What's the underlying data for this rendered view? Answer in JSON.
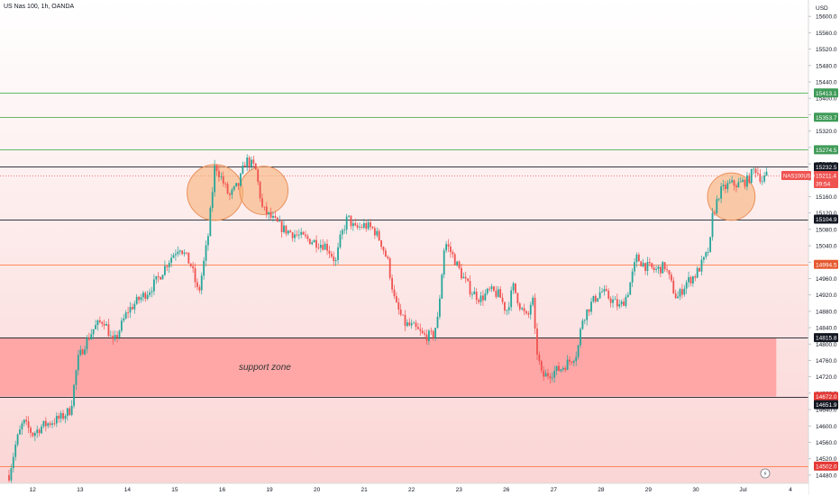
{
  "header": {
    "symbol_title": "US Nas 100, 1h, OANDA"
  },
  "axis": {
    "currency": "USD"
  },
  "annotation": {
    "support_zone_label": "support zone"
  },
  "colors": {
    "up": "#26a69a",
    "down": "#ef5350",
    "wick": "#444444",
    "green_line": "#4caf50",
    "orange_line": "#ff7a45",
    "black_line": "#131722",
    "zone_fill": "#ffa1a1",
    "bg_top": "#ffffff",
    "bg_bottom": "#fbd5d5",
    "circle_fill": "#f6b178",
    "circle_stroke": "#e9905a"
  },
  "chart_data": {
    "type": "candlestick",
    "title": "US Nas 100, 1h, OANDA",
    "ylim": [
      14460,
      15640
    ],
    "y_ticks": [
      15600,
      15560,
      15520,
      15480,
      15440,
      15400,
      15360,
      15320,
      15280,
      15240,
      15200,
      15160,
      15120,
      15080,
      15040,
      15000,
      14960,
      14920,
      14880,
      14840,
      14800,
      14760,
      14720,
      14680,
      14640,
      14600,
      14560,
      14520,
      14480
    ],
    "y_tick_labels": [
      "15600.0",
      "15560.0",
      "15520.0",
      "15480.0",
      "15440.0",
      "15400.0",
      "15360.0",
      "15320.0",
      "15280.0",
      "15240.0",
      "15200.0",
      "15160.0",
      "15120.0",
      "15080.0",
      "15040.0",
      "15000.0",
      "14960.0",
      "14920.0",
      "14880.0",
      "14840.0",
      "14800.0",
      "14760.0",
      "14720.0",
      "14680.0",
      "14640.0",
      "14600.0",
      "14560.0",
      "14520.0",
      "14480.0"
    ],
    "x_ticks": [
      {
        "label": "12",
        "pos": 0.5
      },
      {
        "label": "13",
        "pos": 1.5
      },
      {
        "label": "14",
        "pos": 2.5
      },
      {
        "label": "15",
        "pos": 3.5
      },
      {
        "label": "16",
        "pos": 4.5
      },
      {
        "label": "19",
        "pos": 5.5
      },
      {
        "label": "20",
        "pos": 6.5
      },
      {
        "label": "21",
        "pos": 7.5
      },
      {
        "label": "22",
        "pos": 8.5
      },
      {
        "label": "23",
        "pos": 9.5
      },
      {
        "label": "26",
        "pos": 10.5
      },
      {
        "label": "27",
        "pos": 11.5
      },
      {
        "label": "28",
        "pos": 12.5
      },
      {
        "label": "29",
        "pos": 13.5
      },
      {
        "label": "30",
        "pos": 14.5
      },
      {
        "label": "Jul",
        "pos": 15.5
      },
      {
        "label": "4",
        "pos": 16.5
      }
    ],
    "horizontal_levels": [
      {
        "price": 15413.1,
        "label": "15413.1",
        "color": "#4caf50",
        "badge": "#3f9b58"
      },
      {
        "price": 15353.7,
        "label": "15353.7",
        "color": "#4caf50",
        "badge": "#3f9b58"
      },
      {
        "price": 15274.5,
        "label": "15274.5",
        "color": "#4caf50",
        "badge": "#3f9b58"
      },
      {
        "price": 15232.5,
        "label": "15232.5",
        "color": "#131722",
        "badge": "#131722"
      },
      {
        "price": 15104.9,
        "label": "15104.9",
        "color": "#131722",
        "badge": "#131722"
      },
      {
        "price": 14994.5,
        "label": "14994.5",
        "color": "#ff7a45",
        "badge": "#e65a2f"
      },
      {
        "price": 14815.8,
        "label": "14815.8",
        "color": "#131722",
        "badge": "#131722"
      },
      {
        "price": 14672.0,
        "label": "14672.0",
        "color": "#131722",
        "badge": "#e53935"
      },
      {
        "price": 14502.0,
        "label": "14502.0",
        "color": "#ff7a45",
        "badge": "#e53935"
      }
    ],
    "extra_price_label": {
      "price": 14651.9,
      "label": "14651.9",
      "badge": "#131722"
    },
    "current_price": {
      "symbol": "NAS100USD",
      "price": 15211.4,
      "label": "15211.4",
      "countdown": "39:54",
      "badge": "#ef5350"
    },
    "support_zone": {
      "top": 14815.8,
      "bottom": 14672.0,
      "x_start": 0,
      "x_end": 16.2,
      "label": "support zone"
    },
    "circles": [
      {
        "x": 4.35,
        "price": 15170,
        "r_days": 0.67
      },
      {
        "x": 5.38,
        "price": 15175,
        "r_days": 0.58
      },
      {
        "x": 15.25,
        "price": 15160,
        "r_days": 0.57
      }
    ],
    "anchors": [
      [
        0.0,
        14480
      ],
      [
        0.15,
        14560
      ],
      [
        0.3,
        14610
      ],
      [
        0.5,
        14580
      ],
      [
        0.7,
        14600
      ],
      [
        0.9,
        14610
      ],
      [
        1.1,
        14620
      ],
      [
        1.3,
        14640
      ],
      [
        1.45,
        14760
      ],
      [
        1.6,
        14800
      ],
      [
        1.8,
        14840
      ],
      [
        2.0,
        14860
      ],
      [
        2.2,
        14800
      ],
      [
        2.5,
        14880
      ],
      [
        2.75,
        14910
      ],
      [
        2.95,
        14930
      ],
      [
        3.15,
        14960
      ],
      [
        3.35,
        15000
      ],
      [
        3.6,
        15040
      ],
      [
        3.85,
        14990
      ],
      [
        4.0,
        14920
      ],
      [
        4.2,
        15060
      ],
      [
        4.35,
        15240
      ],
      [
        4.5,
        15200
      ],
      [
        4.65,
        15160
      ],
      [
        4.85,
        15190
      ],
      [
        5.0,
        15250
      ],
      [
        5.2,
        15230
      ],
      [
        5.35,
        15130
      ],
      [
        5.6,
        15100
      ],
      [
        5.8,
        15080
      ],
      [
        6.0,
        15070
      ],
      [
        6.2,
        15060
      ],
      [
        6.45,
        15050
      ],
      [
        6.7,
        15040
      ],
      [
        6.9,
        15000
      ],
      [
        7.0,
        15060
      ],
      [
        7.15,
        15110
      ],
      [
        7.3,
        15080
      ],
      [
        7.5,
        15090
      ],
      [
        7.7,
        15080
      ],
      [
        7.85,
        15050
      ],
      [
        8.0,
        15000
      ],
      [
        8.15,
        14900
      ],
      [
        8.35,
        14850
      ],
      [
        8.55,
        14840
      ],
      [
        8.75,
        14820
      ],
      [
        8.95,
        14820
      ],
      [
        9.05,
        14860
      ],
      [
        9.2,
        15050
      ],
      [
        9.35,
        15020
      ],
      [
        9.55,
        14970
      ],
      [
        9.75,
        14930
      ],
      [
        9.95,
        14910
      ],
      [
        10.15,
        14930
      ],
      [
        10.35,
        14920
      ],
      [
        10.5,
        14880
      ],
      [
        10.65,
        14940
      ],
      [
        10.8,
        14890
      ],
      [
        10.95,
        14860
      ],
      [
        11.05,
        14920
      ],
      [
        11.12,
        14800
      ],
      [
        11.25,
        14720
      ],
      [
        11.45,
        14730
      ],
      [
        11.65,
        14740
      ],
      [
        11.85,
        14760
      ],
      [
        12.0,
        14780
      ],
      [
        12.1,
        14860
      ],
      [
        12.3,
        14900
      ],
      [
        12.5,
        14930
      ],
      [
        12.7,
        14910
      ],
      [
        12.9,
        14890
      ],
      [
        13.05,
        14920
      ],
      [
        13.25,
        15010
      ],
      [
        13.45,
        14990
      ],
      [
        13.65,
        14980
      ],
      [
        13.85,
        14990
      ],
      [
        14.0,
        14940
      ],
      [
        14.1,
        14910
      ],
      [
        14.3,
        14950
      ],
      [
        14.5,
        14970
      ],
      [
        14.7,
        15010
      ],
      [
        14.8,
        15040
      ],
      [
        14.85,
        15110
      ],
      [
        15.0,
        15170
      ],
      [
        15.2,
        15190
      ],
      [
        15.4,
        15190
      ],
      [
        15.6,
        15200
      ],
      [
        15.75,
        15230
      ],
      [
        15.9,
        15200
      ],
      [
        16.0,
        15211
      ]
    ]
  }
}
